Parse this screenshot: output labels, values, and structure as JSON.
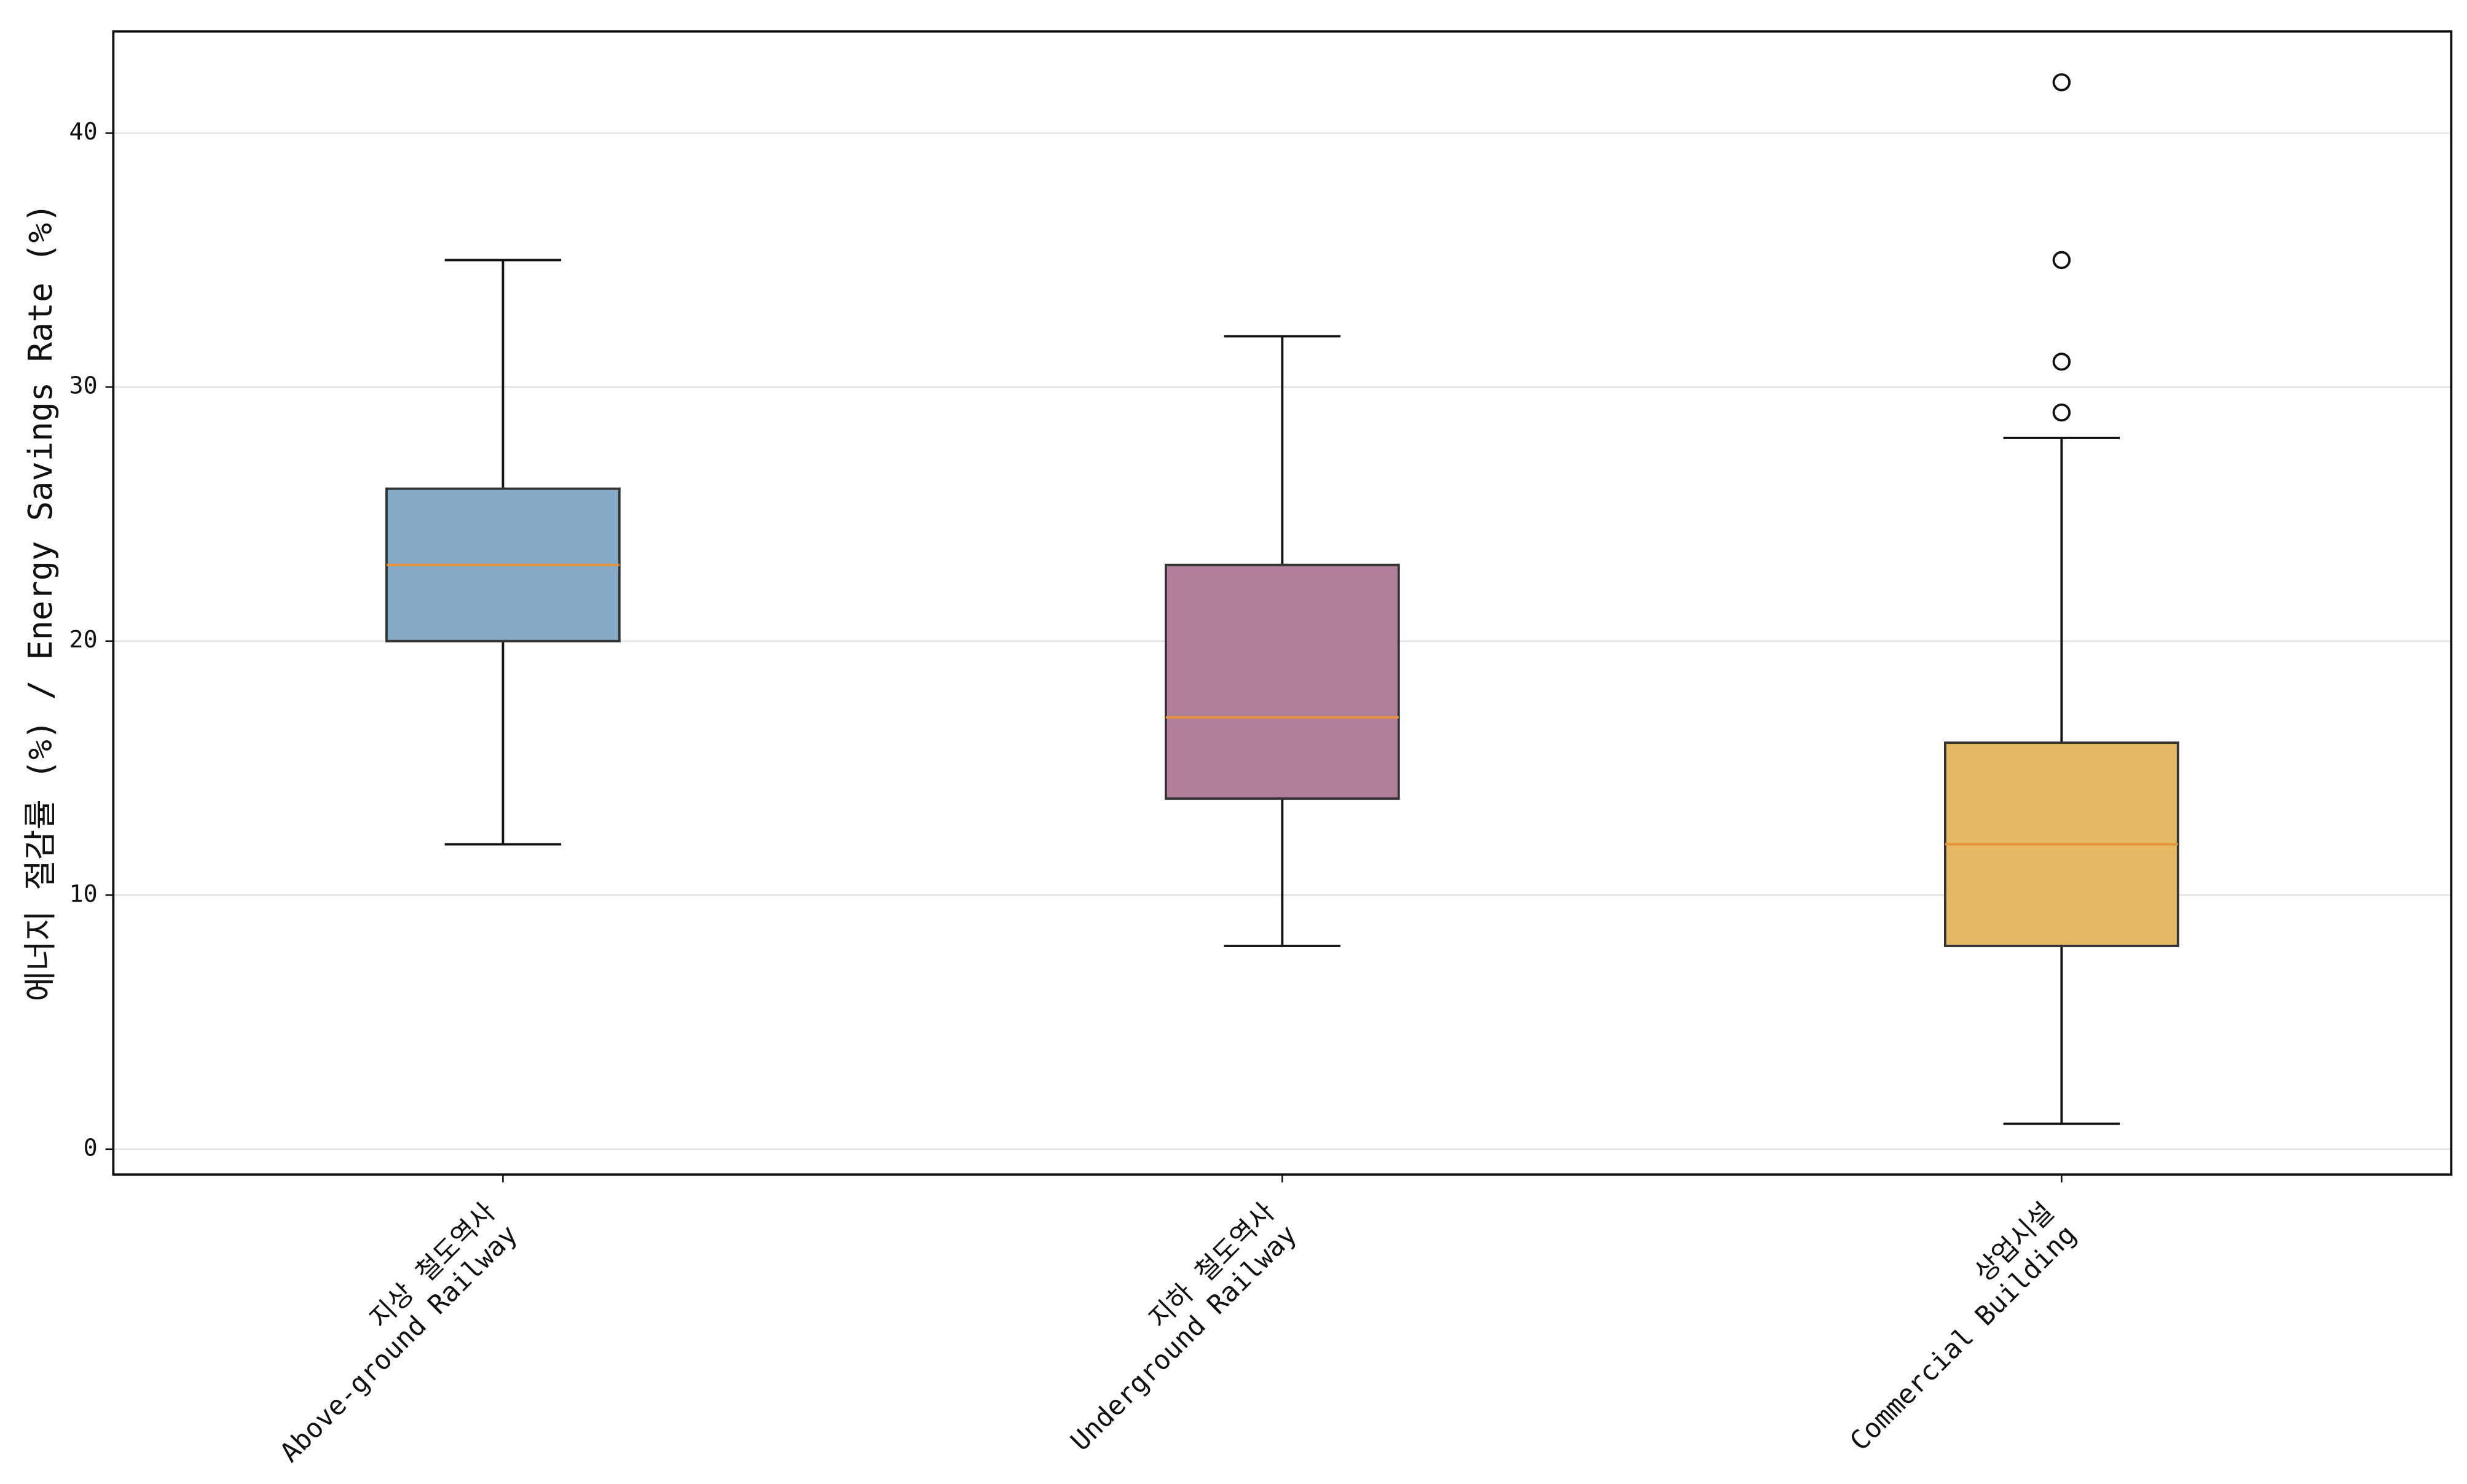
{
  "chart_data": {
    "type": "box",
    "ylabel": "에너지 절감률 (%) / Energy Savings Rate (%)",
    "categories": [
      [
        "지상 철도역사",
        "Above-ground Railway"
      ],
      [
        "지하 철도역사",
        "Underground Railway"
      ],
      [
        "상업시설",
        "Commercial Building"
      ]
    ],
    "boxes": [
      {
        "whislo": 12,
        "q1": 20,
        "median": 23,
        "q3": 26,
        "whishi": 35,
        "fliers": [],
        "color": "#7ea6c4"
      },
      {
        "whislo": 8,
        "q1": 13.8,
        "median": 17,
        "q3": 23,
        "whishi": 32,
        "fliers": [],
        "color": "#ad7894"
      },
      {
        "whislo": 1,
        "q1": 8,
        "median": 12,
        "q3": 16,
        "whishi": 28,
        "fliers": [
          29,
          31,
          35,
          42
        ],
        "color": "#e4b45c"
      }
    ],
    "median_color": "#e8923a",
    "ylim": [
      -1,
      44
    ],
    "yticks": [
      0,
      10,
      20,
      30,
      40
    ],
    "grid": true
  }
}
